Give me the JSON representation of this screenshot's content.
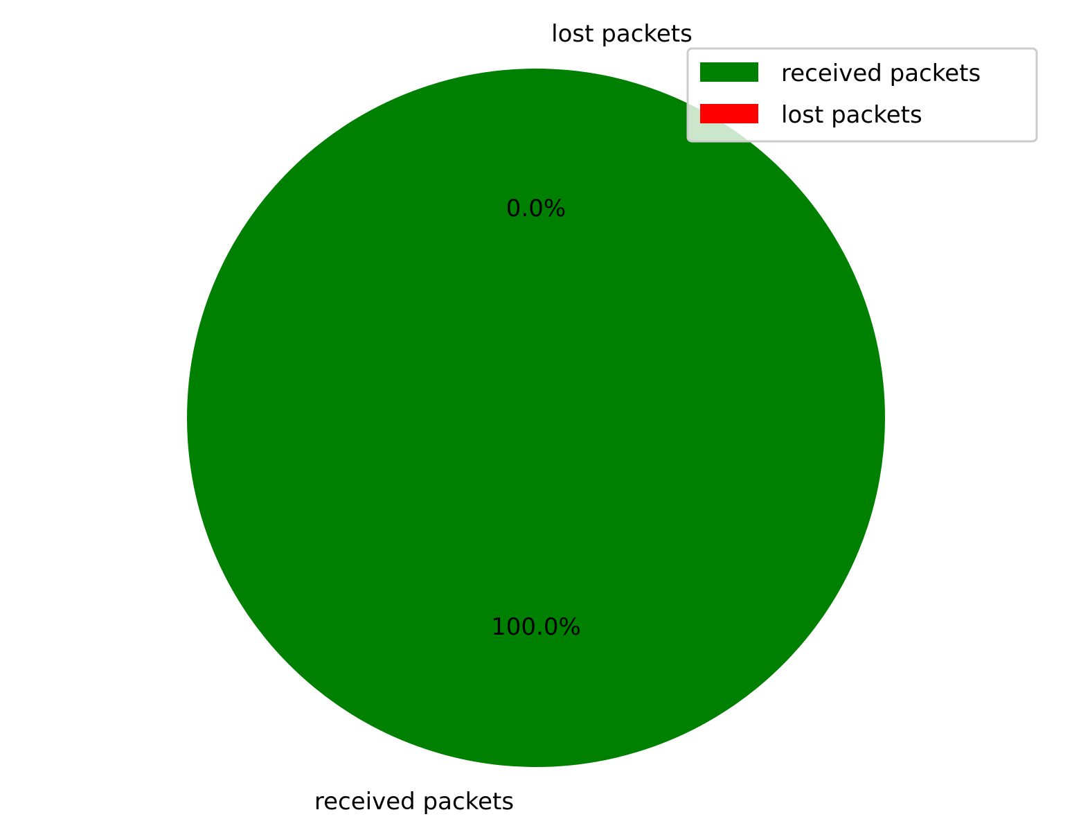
{
  "chart_data": {
    "type": "pie",
    "categories": [
      "received packets",
      "lost packets"
    ],
    "values": [
      100.0,
      0.0
    ],
    "percent_labels": [
      "100.0%",
      "0.0%"
    ],
    "colors": [
      "#008000",
      "#ff0000"
    ],
    "legend": {
      "position": "top-right",
      "entries": [
        "received packets",
        "lost packets"
      ]
    },
    "title": ""
  }
}
